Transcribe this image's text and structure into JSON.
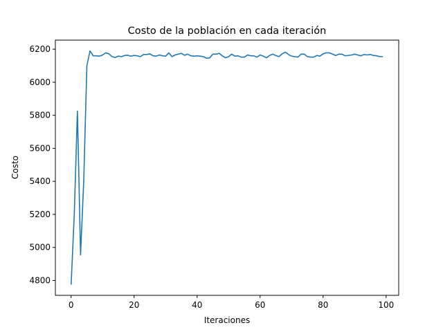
{
  "chart_data": {
    "type": "line",
    "title": "Costo de la población en cada iteración",
    "xlabel": "Iteraciones",
    "ylabel": "Costo",
    "xlim": [
      -5,
      104
    ],
    "ylim": [
      4710,
      6255
    ],
    "xticks": [
      0,
      20,
      40,
      60,
      80,
      100
    ],
    "yticks": [
      4800,
      5000,
      5200,
      5400,
      5600,
      5800,
      6000,
      6200
    ],
    "grid": false,
    "legend": "none",
    "color": "#1f77b4",
    "series": [
      {
        "x": [
          0,
          1,
          2,
          3,
          4,
          5,
          6,
          7,
          8,
          9,
          10,
          11,
          12,
          13,
          14,
          15,
          16,
          17,
          18,
          19,
          20,
          21,
          22,
          23,
          24,
          25,
          26,
          27,
          28,
          29,
          30,
          31,
          32,
          33,
          34,
          35,
          36,
          37,
          38,
          39,
          40,
          41,
          42,
          43,
          44,
          45,
          46,
          47,
          48,
          49,
          50,
          51,
          52,
          53,
          54,
          55,
          56,
          57,
          58,
          59,
          60,
          61,
          62,
          63,
          64,
          65,
          66,
          67,
          68,
          69,
          70,
          71,
          72,
          73,
          74,
          75,
          76,
          77,
          78,
          79,
          80,
          81,
          82,
          83,
          84,
          85,
          86,
          87,
          88,
          89,
          90,
          91,
          92,
          93,
          94,
          95,
          96,
          97,
          98,
          99
        ],
        "values": [
          4775,
          5200,
          5825,
          4955,
          5400,
          6100,
          6190,
          6160,
          6160,
          6158,
          6165,
          6178,
          6172,
          6155,
          6150,
          6158,
          6155,
          6162,
          6163,
          6158,
          6162,
          6160,
          6155,
          6168,
          6168,
          6172,
          6160,
          6158,
          6165,
          6160,
          6158,
          6178,
          6155,
          6165,
          6170,
          6175,
          6163,
          6170,
          6160,
          6158,
          6160,
          6158,
          6155,
          6145,
          6148,
          6170,
          6170,
          6175,
          6160,
          6148,
          6155,
          6170,
          6158,
          6160,
          6152,
          6152,
          6165,
          6160,
          6160,
          6152,
          6165,
          6158,
          6148,
          6162,
          6170,
          6162,
          6155,
          6172,
          6182,
          6168,
          6158,
          6155,
          6152,
          6170,
          6170,
          6155,
          6152,
          6152,
          6162,
          6158,
          6172,
          6178,
          6178,
          6170,
          6162,
          6170,
          6170,
          6160,
          6162,
          6165,
          6170,
          6165,
          6160,
          6168,
          6165,
          6168,
          6162,
          6160,
          6155,
          6155
        ]
      }
    ]
  }
}
